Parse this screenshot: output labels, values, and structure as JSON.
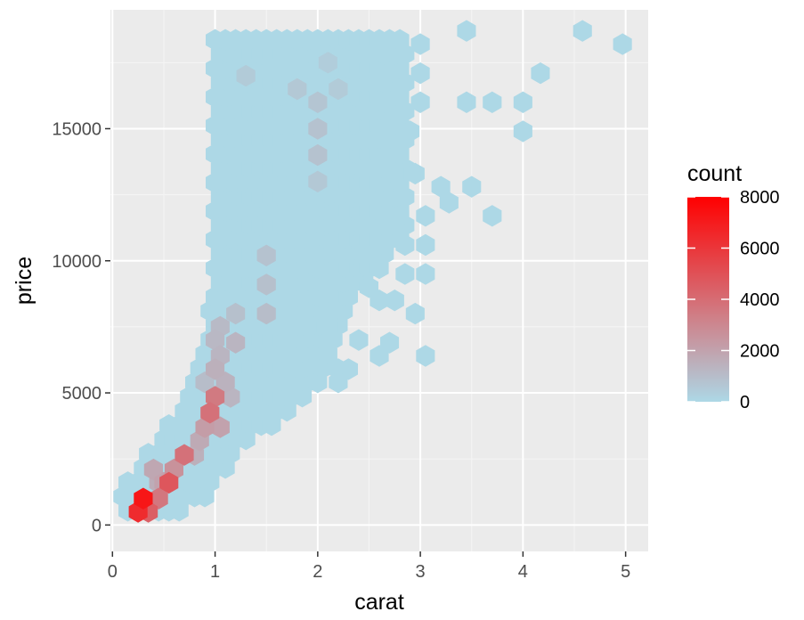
{
  "chart_data": {
    "type": "hexbin",
    "xlabel": "carat",
    "ylabel": "price",
    "xlim": [
      -0.02,
      5.22
    ],
    "ylim": [
      -1000,
      19500
    ],
    "x_ticks": [
      0,
      1,
      2,
      3,
      4,
      5
    ],
    "x_tick_labels": [
      "0",
      "1",
      "2",
      "3",
      "4",
      "5"
    ],
    "y_ticks": [
      0,
      5000,
      10000,
      15000
    ],
    "y_tick_labels": [
      "0",
      "5000",
      "10000",
      "15000"
    ],
    "legend": {
      "title": "count",
      "position": "right",
      "min": 0,
      "max": 8000,
      "breaks": [
        0,
        2000,
        4000,
        6000,
        8000
      ],
      "break_labels": [
        "0",
        "2000",
        "4000",
        "6000",
        "8000"
      ],
      "low_color": "#add8e6",
      "high_color": "#ff0000"
    },
    "bins": [
      {
        "x": 0.3,
        "y": 1000,
        "count": 7200
      },
      {
        "x": 0.25,
        "y": 500,
        "count": 6400
      },
      {
        "x": 0.35,
        "y": 500,
        "count": 4500
      },
      {
        "x": 0.55,
        "y": 1600,
        "count": 4800
      },
      {
        "x": 0.45,
        "y": 1000,
        "count": 3600
      },
      {
        "x": 0.7,
        "y": 2650,
        "count": 3800
      },
      {
        "x": 0.6,
        "y": 2100,
        "count": 2600
      },
      {
        "x": 0.5,
        "y": 1600,
        "count": 2000
      },
      {
        "x": 0.4,
        "y": 2100,
        "count": 1800
      },
      {
        "x": 0.45,
        "y": 1600,
        "count": 1600
      },
      {
        "x": 1.0,
        "y": 4850,
        "count": 3500
      },
      {
        "x": 0.95,
        "y": 4250,
        "count": 3800
      },
      {
        "x": 0.9,
        "y": 3700,
        "count": 2200
      },
      {
        "x": 1.05,
        "y": 3700,
        "count": 2000
      },
      {
        "x": 0.85,
        "y": 3200,
        "count": 1700
      },
      {
        "x": 0.8,
        "y": 2650,
        "count": 1500
      },
      {
        "x": 1.0,
        "y": 5900,
        "count": 1500
      },
      {
        "x": 1.1,
        "y": 5400,
        "count": 1400
      },
      {
        "x": 1.05,
        "y": 6400,
        "count": 1300
      },
      {
        "x": 1.2,
        "y": 6900,
        "count": 1300
      },
      {
        "x": 1.05,
        "y": 7500,
        "count": 1100
      },
      {
        "x": 1.0,
        "y": 7000,
        "count": 1200
      },
      {
        "x": 1.15,
        "y": 4850,
        "count": 1300
      },
      {
        "x": 0.9,
        "y": 5400,
        "count": 1000
      },
      {
        "x": 1.5,
        "y": 8000,
        "count": 1000
      },
      {
        "x": 1.5,
        "y": 9100,
        "count": 900
      },
      {
        "x": 1.5,
        "y": 10200,
        "count": 800
      },
      {
        "x": 1.2,
        "y": 8000,
        "count": 900
      },
      {
        "x": 2.0,
        "y": 14000,
        "count": 800
      },
      {
        "x": 2.0,
        "y": 15000,
        "count": 800
      },
      {
        "x": 2.0,
        "y": 16000,
        "count": 700
      },
      {
        "x": 1.8,
        "y": 16500,
        "count": 600
      },
      {
        "x": 1.3,
        "y": 17000,
        "count": 500
      },
      {
        "x": 2.0,
        "y": 13000,
        "count": 600
      },
      {
        "x": 2.2,
        "y": 16500,
        "count": 500
      },
      {
        "x": 2.1,
        "y": 17500,
        "count": 400
      }
    ]
  }
}
